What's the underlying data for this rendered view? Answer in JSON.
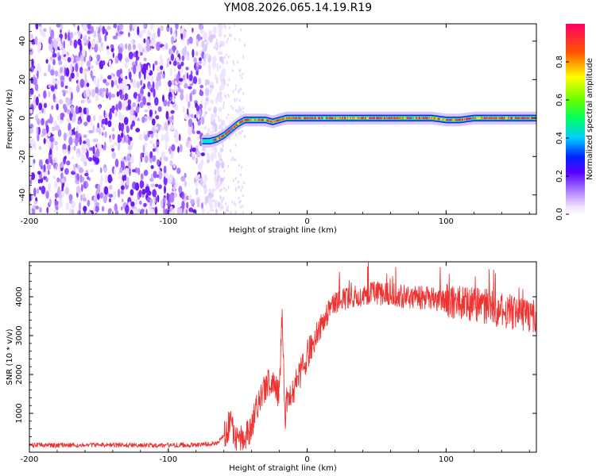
{
  "title": "YM08.2026.065.14.19.R19",
  "chart_data": [
    {
      "type": "heatmap",
      "xlabel": "Height of straight line (km)",
      "ylabel": "Frequency (Hz)",
      "xlim": [
        -200,
        165
      ],
      "ylim": [
        -50,
        49
      ],
      "xticks": [
        -200,
        -100,
        0,
        100
      ],
      "yticks": [
        -40,
        -20,
        0,
        20,
        40
      ],
      "colorbar": {
        "label": "Normalized spectral amplitude",
        "range": [
          0,
          1
        ],
        "ticks": [
          "0.0",
          "0.2",
          "0.4",
          "0.6",
          "0.8"
        ]
      },
      "noise_region_x": [
        -200,
        -60
      ],
      "track": {
        "x": [
          -75,
          -70,
          -65,
          -60,
          -55,
          -50,
          -45,
          -40,
          -35,
          -30,
          -25,
          -20,
          -15,
          -10,
          0,
          20,
          40,
          60,
          80,
          90,
          100,
          110,
          120,
          130,
          140,
          150,
          165
        ],
        "freq": [
          -12,
          -12,
          -11,
          -9,
          -6,
          -3,
          -1,
          -1,
          -1,
          -1,
          -2,
          -1,
          0,
          0,
          0,
          0,
          0,
          0,
          0,
          0,
          -1,
          -1,
          0,
          0,
          0,
          0,
          0
        ]
      }
    },
    {
      "type": "line",
      "xlabel": "Height of straight line (km)",
      "ylabel": "SNR (10 * v/v)",
      "xlim": [
        -200,
        165
      ],
      "ylim": [
        0,
        4900
      ],
      "xticks": [
        -200,
        -100,
        0,
        100
      ],
      "yticks": [
        1000,
        2000,
        3000,
        4000
      ],
      "series": [
        {
          "name": "SNR",
          "color": "#ee3333",
          "x": [
            -200,
            -180,
            -160,
            -140,
            -120,
            -100,
            -80,
            -65,
            -58,
            -55,
            -52,
            -48,
            -42,
            -38,
            -35,
            -30,
            -25,
            -22,
            -20,
            -18,
            -17,
            -16,
            -15,
            -12,
            -8,
            -4,
            0,
            5,
            10,
            15,
            20,
            25,
            30,
            40,
            50,
            60,
            70,
            80,
            90,
            100,
            110,
            120,
            130,
            140,
            150,
            165
          ],
          "y": [
            180,
            180,
            180,
            185,
            180,
            180,
            190,
            230,
            500,
            870,
            300,
            350,
            500,
            900,
            1300,
            1700,
            1900,
            1600,
            1500,
            3800,
            2200,
            600,
            1300,
            1400,
            1800,
            2100,
            2500,
            2900,
            3300,
            3600,
            3850,
            3900,
            4000,
            4050,
            4100,
            4050,
            4000,
            3980,
            3950,
            3900,
            3850,
            3800,
            3750,
            3650,
            3600,
            3500
          ]
        }
      ]
    }
  ]
}
